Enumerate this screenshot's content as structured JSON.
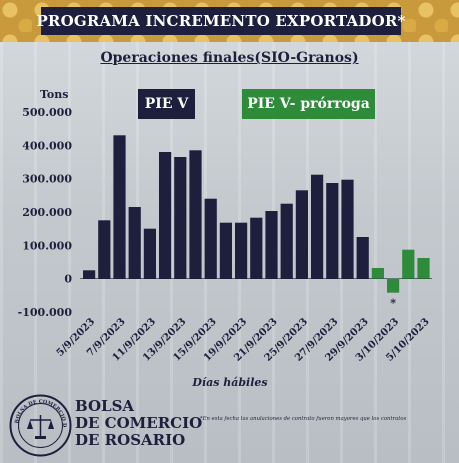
{
  "banner": {
    "title": "PROGRAMA INCREMENTO EXPORTADOR*"
  },
  "subtitle": "Operaciones finales(SIO-Granos)",
  "legend": {
    "pie_v": "PIE V",
    "pie_v_prorroga": "PIE V- prórroga"
  },
  "colors": {
    "navy": "#1d1f3d",
    "green": "#2e8b3a",
    "accent": "#c99a3c"
  },
  "chart_data": {
    "type": "bar",
    "ylabel": "Tons",
    "xlabel": "Días hábiles",
    "ylim": [
      -100000,
      500000
    ],
    "yticks": [
      "500.000",
      "400.000",
      "300.000",
      "200.000",
      "100.000",
      "0",
      "-100.000"
    ],
    "tick_values": [
      500000,
      400000,
      300000,
      200000,
      100000,
      0,
      -100000
    ],
    "x_tick_labels": [
      "5/9/2023",
      "7/9/2023",
      "11/9/2023",
      "13/9/2023",
      "15/9/2023",
      "19/9/2023",
      "21/9/2023",
      "25/9/2023",
      "27/9/2023",
      "29/9/2023",
      "3/10/2023",
      "5/10/2023"
    ],
    "series": [
      {
        "name": "PIE V",
        "values": [
          25000,
          175000,
          430000,
          215000,
          150000,
          380000,
          365000,
          385000,
          240000,
          168000,
          168000,
          183000,
          203000,
          225000,
          265000,
          312000,
          287000,
          297000,
          125000
        ]
      },
      {
        "name": "PIE V- prórroga",
        "values": [
          32000,
          -42000,
          87000,
          62000
        ]
      }
    ],
    "annotation": "*",
    "annotation_bar": 1
  },
  "footnote": "*En esta fecha las anulaciones de contrato fueron mayores que los contratos",
  "logo": {
    "name_lines": [
      "BOLSA",
      "DE COMERCIO",
      "DE ROSARIO"
    ],
    "seal_text": "BOLSA DE COMERCIO DE ROSARIO"
  }
}
